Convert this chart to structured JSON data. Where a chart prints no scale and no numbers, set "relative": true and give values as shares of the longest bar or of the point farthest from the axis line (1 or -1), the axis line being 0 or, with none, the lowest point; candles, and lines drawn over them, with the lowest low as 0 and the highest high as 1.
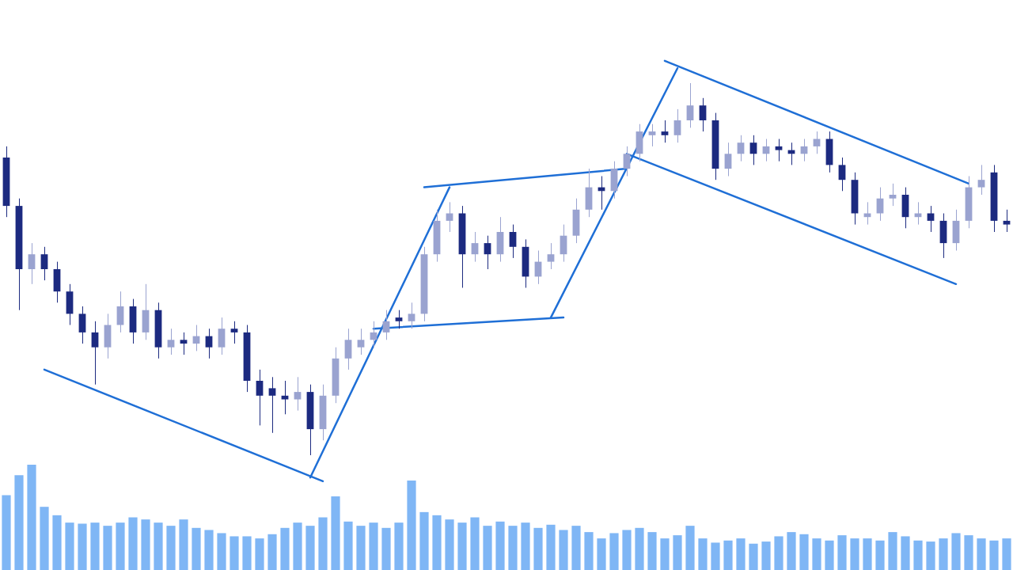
{
  "chart_data": [
    {
      "type": "candlestick",
      "relative": true,
      "tick_labels": false,
      "grid": false,
      "legend": false,
      "categories": [
        null,
        null,
        null,
        null,
        null,
        null,
        null,
        null,
        null,
        null,
        null,
        null,
        null,
        null,
        null,
        null,
        null,
        null,
        null,
        null,
        null,
        null,
        null,
        null,
        null,
        null,
        null,
        null,
        null,
        null,
        null,
        null,
        null,
        null,
        null,
        null,
        null,
        null,
        null,
        null,
        null,
        null,
        null,
        null,
        null,
        null,
        null,
        null,
        null,
        null,
        null,
        null,
        null,
        null,
        null,
        null,
        null,
        null,
        null,
        null,
        null,
        null,
        null,
        null,
        null,
        null,
        null,
        null,
        null,
        null,
        null,
        null,
        null,
        null,
        null,
        null,
        null,
        null,
        null,
        null
      ],
      "ohlc": [
        [
          0.8,
          0.83,
          0.64,
          0.67
        ],
        [
          0.67,
          0.69,
          0.39,
          0.5
        ],
        [
          0.5,
          0.57,
          0.46,
          0.54
        ],
        [
          0.54,
          0.56,
          0.47,
          0.5
        ],
        [
          0.5,
          0.52,
          0.41,
          0.44
        ],
        [
          0.44,
          0.46,
          0.35,
          0.38
        ],
        [
          0.38,
          0.4,
          0.3,
          0.33
        ],
        [
          0.33,
          0.36,
          0.19,
          0.29
        ],
        [
          0.29,
          0.38,
          0.26,
          0.35
        ],
        [
          0.35,
          0.44,
          0.33,
          0.4
        ],
        [
          0.4,
          0.42,
          0.3,
          0.33
        ],
        [
          0.33,
          0.46,
          0.31,
          0.39
        ],
        [
          0.39,
          0.41,
          0.26,
          0.29
        ],
        [
          0.29,
          0.34,
          0.27,
          0.31
        ],
        [
          0.31,
          0.33,
          0.27,
          0.3
        ],
        [
          0.3,
          0.35,
          0.28,
          0.32
        ],
        [
          0.32,
          0.34,
          0.26,
          0.29
        ],
        [
          0.29,
          0.37,
          0.27,
          0.34
        ],
        [
          0.34,
          0.36,
          0.3,
          0.33
        ],
        [
          0.33,
          0.35,
          0.17,
          0.2
        ],
        [
          0.2,
          0.23,
          0.08,
          0.16
        ],
        [
          0.18,
          0.21,
          0.06,
          0.16
        ],
        [
          0.16,
          0.2,
          0.11,
          0.15
        ],
        [
          0.15,
          0.21,
          0.12,
          0.17
        ],
        [
          0.17,
          0.19,
          0.0,
          0.07
        ],
        [
          0.07,
          0.19,
          0.04,
          0.16
        ],
        [
          0.16,
          0.29,
          0.14,
          0.26
        ],
        [
          0.26,
          0.34,
          0.23,
          0.31
        ],
        [
          0.29,
          0.34,
          0.27,
          0.31
        ],
        [
          0.31,
          0.36,
          0.29,
          0.33
        ],
        [
          0.33,
          0.39,
          0.31,
          0.36
        ],
        [
          0.37,
          0.39,
          0.34,
          0.36
        ],
        [
          0.36,
          0.41,
          0.34,
          0.38
        ],
        [
          0.38,
          0.56,
          0.36,
          0.54
        ],
        [
          0.54,
          0.66,
          0.52,
          0.63
        ],
        [
          0.63,
          0.68,
          0.6,
          0.65
        ],
        [
          0.65,
          0.67,
          0.45,
          0.54
        ],
        [
          0.54,
          0.6,
          0.52,
          0.57
        ],
        [
          0.57,
          0.59,
          0.5,
          0.54
        ],
        [
          0.54,
          0.64,
          0.52,
          0.6
        ],
        [
          0.6,
          0.62,
          0.53,
          0.56
        ],
        [
          0.56,
          0.58,
          0.45,
          0.48
        ],
        [
          0.48,
          0.55,
          0.46,
          0.52
        ],
        [
          0.52,
          0.57,
          0.5,
          0.54
        ],
        [
          0.54,
          0.62,
          0.52,
          0.59
        ],
        [
          0.59,
          0.69,
          0.57,
          0.66
        ],
        [
          0.66,
          0.77,
          0.64,
          0.72
        ],
        [
          0.72,
          0.75,
          0.66,
          0.71
        ],
        [
          0.71,
          0.79,
          0.69,
          0.77
        ],
        [
          0.77,
          0.83,
          0.75,
          0.81
        ],
        [
          0.81,
          0.89,
          0.79,
          0.87
        ],
        [
          0.86,
          0.89,
          0.83,
          0.87
        ],
        [
          0.87,
          0.9,
          0.84,
          0.86
        ],
        [
          0.86,
          0.93,
          0.84,
          0.9
        ],
        [
          0.9,
          1.0,
          0.88,
          0.94
        ],
        [
          0.94,
          0.96,
          0.87,
          0.9
        ],
        [
          0.9,
          0.92,
          0.74,
          0.77
        ],
        [
          0.77,
          0.84,
          0.75,
          0.81
        ],
        [
          0.81,
          0.86,
          0.79,
          0.84
        ],
        [
          0.84,
          0.86,
          0.78,
          0.81
        ],
        [
          0.81,
          0.85,
          0.79,
          0.83
        ],
        [
          0.83,
          0.85,
          0.79,
          0.82
        ],
        [
          0.82,
          0.84,
          0.78,
          0.81
        ],
        [
          0.81,
          0.85,
          0.79,
          0.83
        ],
        [
          0.83,
          0.87,
          0.81,
          0.85
        ],
        [
          0.85,
          0.87,
          0.76,
          0.78
        ],
        [
          0.78,
          0.8,
          0.71,
          0.74
        ],
        [
          0.74,
          0.76,
          0.62,
          0.65
        ],
        [
          0.64,
          0.68,
          0.62,
          0.65
        ],
        [
          0.65,
          0.72,
          0.63,
          0.69
        ],
        [
          0.69,
          0.73,
          0.67,
          0.7
        ],
        [
          0.7,
          0.72,
          0.61,
          0.64
        ],
        [
          0.64,
          0.68,
          0.62,
          0.65
        ],
        [
          0.65,
          0.67,
          0.6,
          0.63
        ],
        [
          0.63,
          0.65,
          0.53,
          0.57
        ],
        [
          0.57,
          0.66,
          0.55,
          0.63
        ],
        [
          0.63,
          0.75,
          0.61,
          0.72
        ],
        [
          0.72,
          0.78,
          0.7,
          0.74
        ],
        [
          0.76,
          0.78,
          0.6,
          0.63
        ],
        [
          0.63,
          0.66,
          0.6,
          0.62
        ]
      ],
      "colors": [
        "#1c2a80",
        "#1c2a80",
        "#9aa3d0",
        "#1c2a80",
        "#1c2a80",
        "#1c2a80",
        "#1c2a80",
        "#1c2a80",
        "#9aa3d0",
        "#9aa3d0",
        "#1c2a80",
        "#9aa3d0",
        "#1c2a80",
        "#9aa3d0",
        "#1c2a80",
        "#9aa3d0",
        "#1c2a80",
        "#9aa3d0",
        "#1c2a80",
        "#1c2a80",
        "#1c2a80",
        "#1c2a80",
        "#1c2a80",
        "#9aa3d0",
        "#1c2a80",
        "#9aa3d0",
        "#9aa3d0",
        "#9aa3d0",
        "#9aa3d0",
        "#9aa3d0",
        "#9aa3d0",
        "#1c2a80",
        "#9aa3d0",
        "#9aa3d0",
        "#9aa3d0",
        "#9aa3d0",
        "#1c2a80",
        "#9aa3d0",
        "#1c2a80",
        "#9aa3d0",
        "#1c2a80",
        "#1c2a80",
        "#9aa3d0",
        "#9aa3d0",
        "#9aa3d0",
        "#9aa3d0",
        "#9aa3d0",
        "#1c2a80",
        "#9aa3d0",
        "#9aa3d0",
        "#9aa3d0",
        "#9aa3d0",
        "#1c2a80",
        "#9aa3d0",
        "#9aa3d0",
        "#1c2a80",
        "#1c2a80",
        "#9aa3d0",
        "#9aa3d0",
        "#1c2a80",
        "#9aa3d0",
        "#1c2a80",
        "#1c2a80",
        "#9aa3d0",
        "#9aa3d0",
        "#1c2a80",
        "#1c2a80",
        "#1c2a80",
        "#9aa3d0",
        "#9aa3d0",
        "#9aa3d0",
        "#1c2a80",
        "#9aa3d0",
        "#1c2a80",
        "#1c2a80",
        "#9aa3d0",
        "#9aa3d0",
        "#9aa3d0",
        "#1c2a80",
        "#1c2a80"
      ],
      "series": [
        {
          "type": "line",
          "color": "#1f6fd6",
          "values": [
            null,
            null,
            null,
            0.23,
            null,
            null,
            null,
            null,
            null,
            null,
            null,
            null,
            null,
            null,
            null,
            null,
            null,
            null,
            null,
            null,
            null,
            null,
            null,
            null,
            null,
            -0.07,
            null,
            null,
            null,
            null,
            null,
            null,
            null,
            null,
            null,
            null,
            null,
            null,
            null,
            null,
            null,
            null,
            null,
            null,
            null,
            null,
            null,
            null,
            null,
            null,
            null,
            null,
            null,
            null,
            null,
            null,
            null,
            null,
            null,
            null,
            null,
            null,
            null,
            null,
            null,
            null,
            null,
            null,
            null,
            null,
            null,
            null,
            null,
            null,
            null,
            null,
            null,
            null,
            null,
            null
          ]
        },
        {
          "type": "line",
          "color": "#1f6fd6",
          "values": [
            null,
            null,
            null,
            null,
            null,
            null,
            null,
            null,
            null,
            null,
            null,
            null,
            null,
            null,
            null,
            null,
            null,
            null,
            null,
            null,
            null,
            null,
            null,
            null,
            -0.06,
            null,
            null,
            null,
            null,
            null,
            null,
            null,
            null,
            null,
            null,
            0.72,
            null,
            null,
            null,
            null,
            null,
            null,
            null,
            null,
            null,
            null,
            null,
            null,
            null,
            null,
            null,
            null,
            null,
            null,
            null,
            null,
            null,
            null,
            null,
            null,
            null,
            null,
            null,
            null,
            null,
            null,
            null,
            null,
            null,
            null,
            null,
            null,
            null,
            null,
            null,
            null,
            null,
            null,
            null,
            null
          ]
        },
        {
          "type": "line",
          "color": "#1f6fd6",
          "values": [
            null,
            null,
            null,
            null,
            null,
            null,
            null,
            null,
            null,
            null,
            null,
            null,
            null,
            null,
            null,
            null,
            null,
            null,
            null,
            null,
            null,
            null,
            null,
            null,
            null,
            null,
            null,
            null,
            null,
            null,
            null,
            null,
            null,
            0.72,
            null,
            null,
            null,
            null,
            null,
            null,
            null,
            null,
            null,
            null,
            null,
            null,
            null,
            null,
            null,
            0.77,
            null,
            null,
            null,
            null,
            null,
            null,
            null,
            null,
            null,
            null,
            null,
            null,
            null,
            null,
            null,
            null,
            null,
            null,
            null,
            null,
            null,
            null,
            null,
            null,
            null,
            null,
            null,
            null,
            null,
            null
          ]
        },
        {
          "type": "line",
          "color": "#1f6fd6",
          "values": [
            null,
            null,
            null,
            null,
            null,
            null,
            null,
            null,
            null,
            null,
            null,
            null,
            null,
            null,
            null,
            null,
            null,
            null,
            null,
            null,
            null,
            null,
            null,
            null,
            null,
            null,
            null,
            null,
            null,
            0.34,
            null,
            null,
            null,
            null,
            null,
            null,
            null,
            null,
            null,
            null,
            null,
            null,
            null,
            null,
            0.37,
            null,
            null,
            null,
            null,
            null,
            null,
            null,
            null,
            null,
            null,
            null,
            null,
            null,
            null,
            null,
            null,
            null,
            null,
            null,
            null,
            null,
            null,
            null,
            null,
            null,
            null,
            null,
            null,
            null,
            null,
            null,
            null,
            null,
            null,
            null
          ]
        },
        {
          "type": "line",
          "color": "#1f6fd6",
          "values": [
            null,
            null,
            null,
            null,
            null,
            null,
            null,
            null,
            null,
            null,
            null,
            null,
            null,
            null,
            null,
            null,
            null,
            null,
            null,
            null,
            null,
            null,
            null,
            null,
            null,
            null,
            null,
            null,
            null,
            null,
            null,
            null,
            null,
            null,
            null,
            null,
            null,
            null,
            null,
            null,
            null,
            null,
            null,
            0.37,
            null,
            null,
            null,
            null,
            null,
            null,
            null,
            null,
            null,
            1.04,
            null,
            null,
            null,
            null,
            null,
            null,
            null,
            null,
            null,
            null,
            null,
            null,
            null,
            null,
            null,
            null,
            null,
            null,
            null,
            null,
            null,
            null,
            null,
            null,
            null,
            null
          ]
        },
        {
          "type": "line",
          "color": "#1f6fd6",
          "values": [
            null,
            null,
            null,
            null,
            null,
            null,
            null,
            null,
            null,
            null,
            null,
            null,
            null,
            null,
            null,
            null,
            null,
            null,
            null,
            null,
            null,
            null,
            null,
            null,
            null,
            null,
            null,
            null,
            null,
            null,
            null,
            null,
            null,
            null,
            null,
            null,
            null,
            null,
            null,
            null,
            null,
            null,
            null,
            null,
            null,
            null,
            null,
            null,
            null,
            null,
            null,
            null,
            1.06,
            null,
            null,
            null,
            null,
            null,
            null,
            null,
            null,
            null,
            null,
            null,
            null,
            null,
            null,
            null,
            null,
            null,
            null,
            null,
            null,
            null,
            null,
            null,
            0.73,
            null,
            null,
            null
          ]
        },
        {
          "type": "line",
          "color": "#1f6fd6",
          "values": [
            null,
            null,
            null,
            null,
            null,
            null,
            null,
            null,
            null,
            null,
            null,
            null,
            null,
            null,
            null,
            null,
            null,
            null,
            null,
            null,
            null,
            null,
            null,
            null,
            null,
            null,
            null,
            null,
            null,
            null,
            null,
            null,
            null,
            null,
            null,
            null,
            null,
            null,
            null,
            null,
            null,
            null,
            null,
            null,
            null,
            null,
            null,
            null,
            null,
            0.81,
            null,
            null,
            null,
            null,
            null,
            null,
            null,
            null,
            null,
            null,
            null,
            null,
            null,
            null,
            null,
            null,
            null,
            null,
            null,
            null,
            null,
            null,
            null,
            null,
            null,
            0.46,
            null,
            null,
            null,
            null
          ]
        }
      ]
    },
    {
      "type": "bar",
      "relative": true,
      "tick_labels": false,
      "grid": false,
      "legend": false,
      "color": "#7fb6f5",
      "categories": [
        null,
        null,
        null,
        null,
        null,
        null,
        null,
        null,
        null,
        null,
        null,
        null,
        null,
        null,
        null,
        null,
        null,
        null,
        null,
        null,
        null,
        null,
        null,
        null,
        null,
        null,
        null,
        null,
        null,
        null,
        null,
        null,
        null,
        null,
        null,
        null,
        null,
        null,
        null,
        null,
        null,
        null,
        null,
        null,
        null,
        null,
        null,
        null,
        null,
        null,
        null,
        null,
        null,
        null,
        null,
        null,
        null,
        null,
        null,
        null,
        null,
        null,
        null,
        null,
        null,
        null,
        null,
        null,
        null,
        null,
        null,
        null,
        null,
        null,
        null,
        null,
        null,
        null,
        null,
        null
      ],
      "values": [
        0.71,
        0.9,
        1.0,
        0.6,
        0.52,
        0.45,
        0.44,
        0.45,
        0.42,
        0.45,
        0.5,
        0.48,
        0.45,
        0.42,
        0.48,
        0.4,
        0.38,
        0.35,
        0.32,
        0.32,
        0.3,
        0.34,
        0.4,
        0.45,
        0.42,
        0.5,
        0.7,
        0.46,
        0.42,
        0.45,
        0.4,
        0.45,
        0.85,
        0.55,
        0.52,
        0.48,
        0.45,
        0.5,
        0.42,
        0.46,
        0.42,
        0.45,
        0.4,
        0.43,
        0.38,
        0.42,
        0.36,
        0.3,
        0.35,
        0.38,
        0.4,
        0.36,
        0.3,
        0.33,
        0.42,
        0.3,
        0.26,
        0.28,
        0.3,
        0.25,
        0.27,
        0.32,
        0.36,
        0.34,
        0.3,
        0.28,
        0.33,
        0.3,
        0.3,
        0.28,
        0.36,
        0.32,
        0.28,
        0.27,
        0.3,
        0.35,
        0.33,
        0.3,
        0.28,
        0.3
      ]
    }
  ]
}
